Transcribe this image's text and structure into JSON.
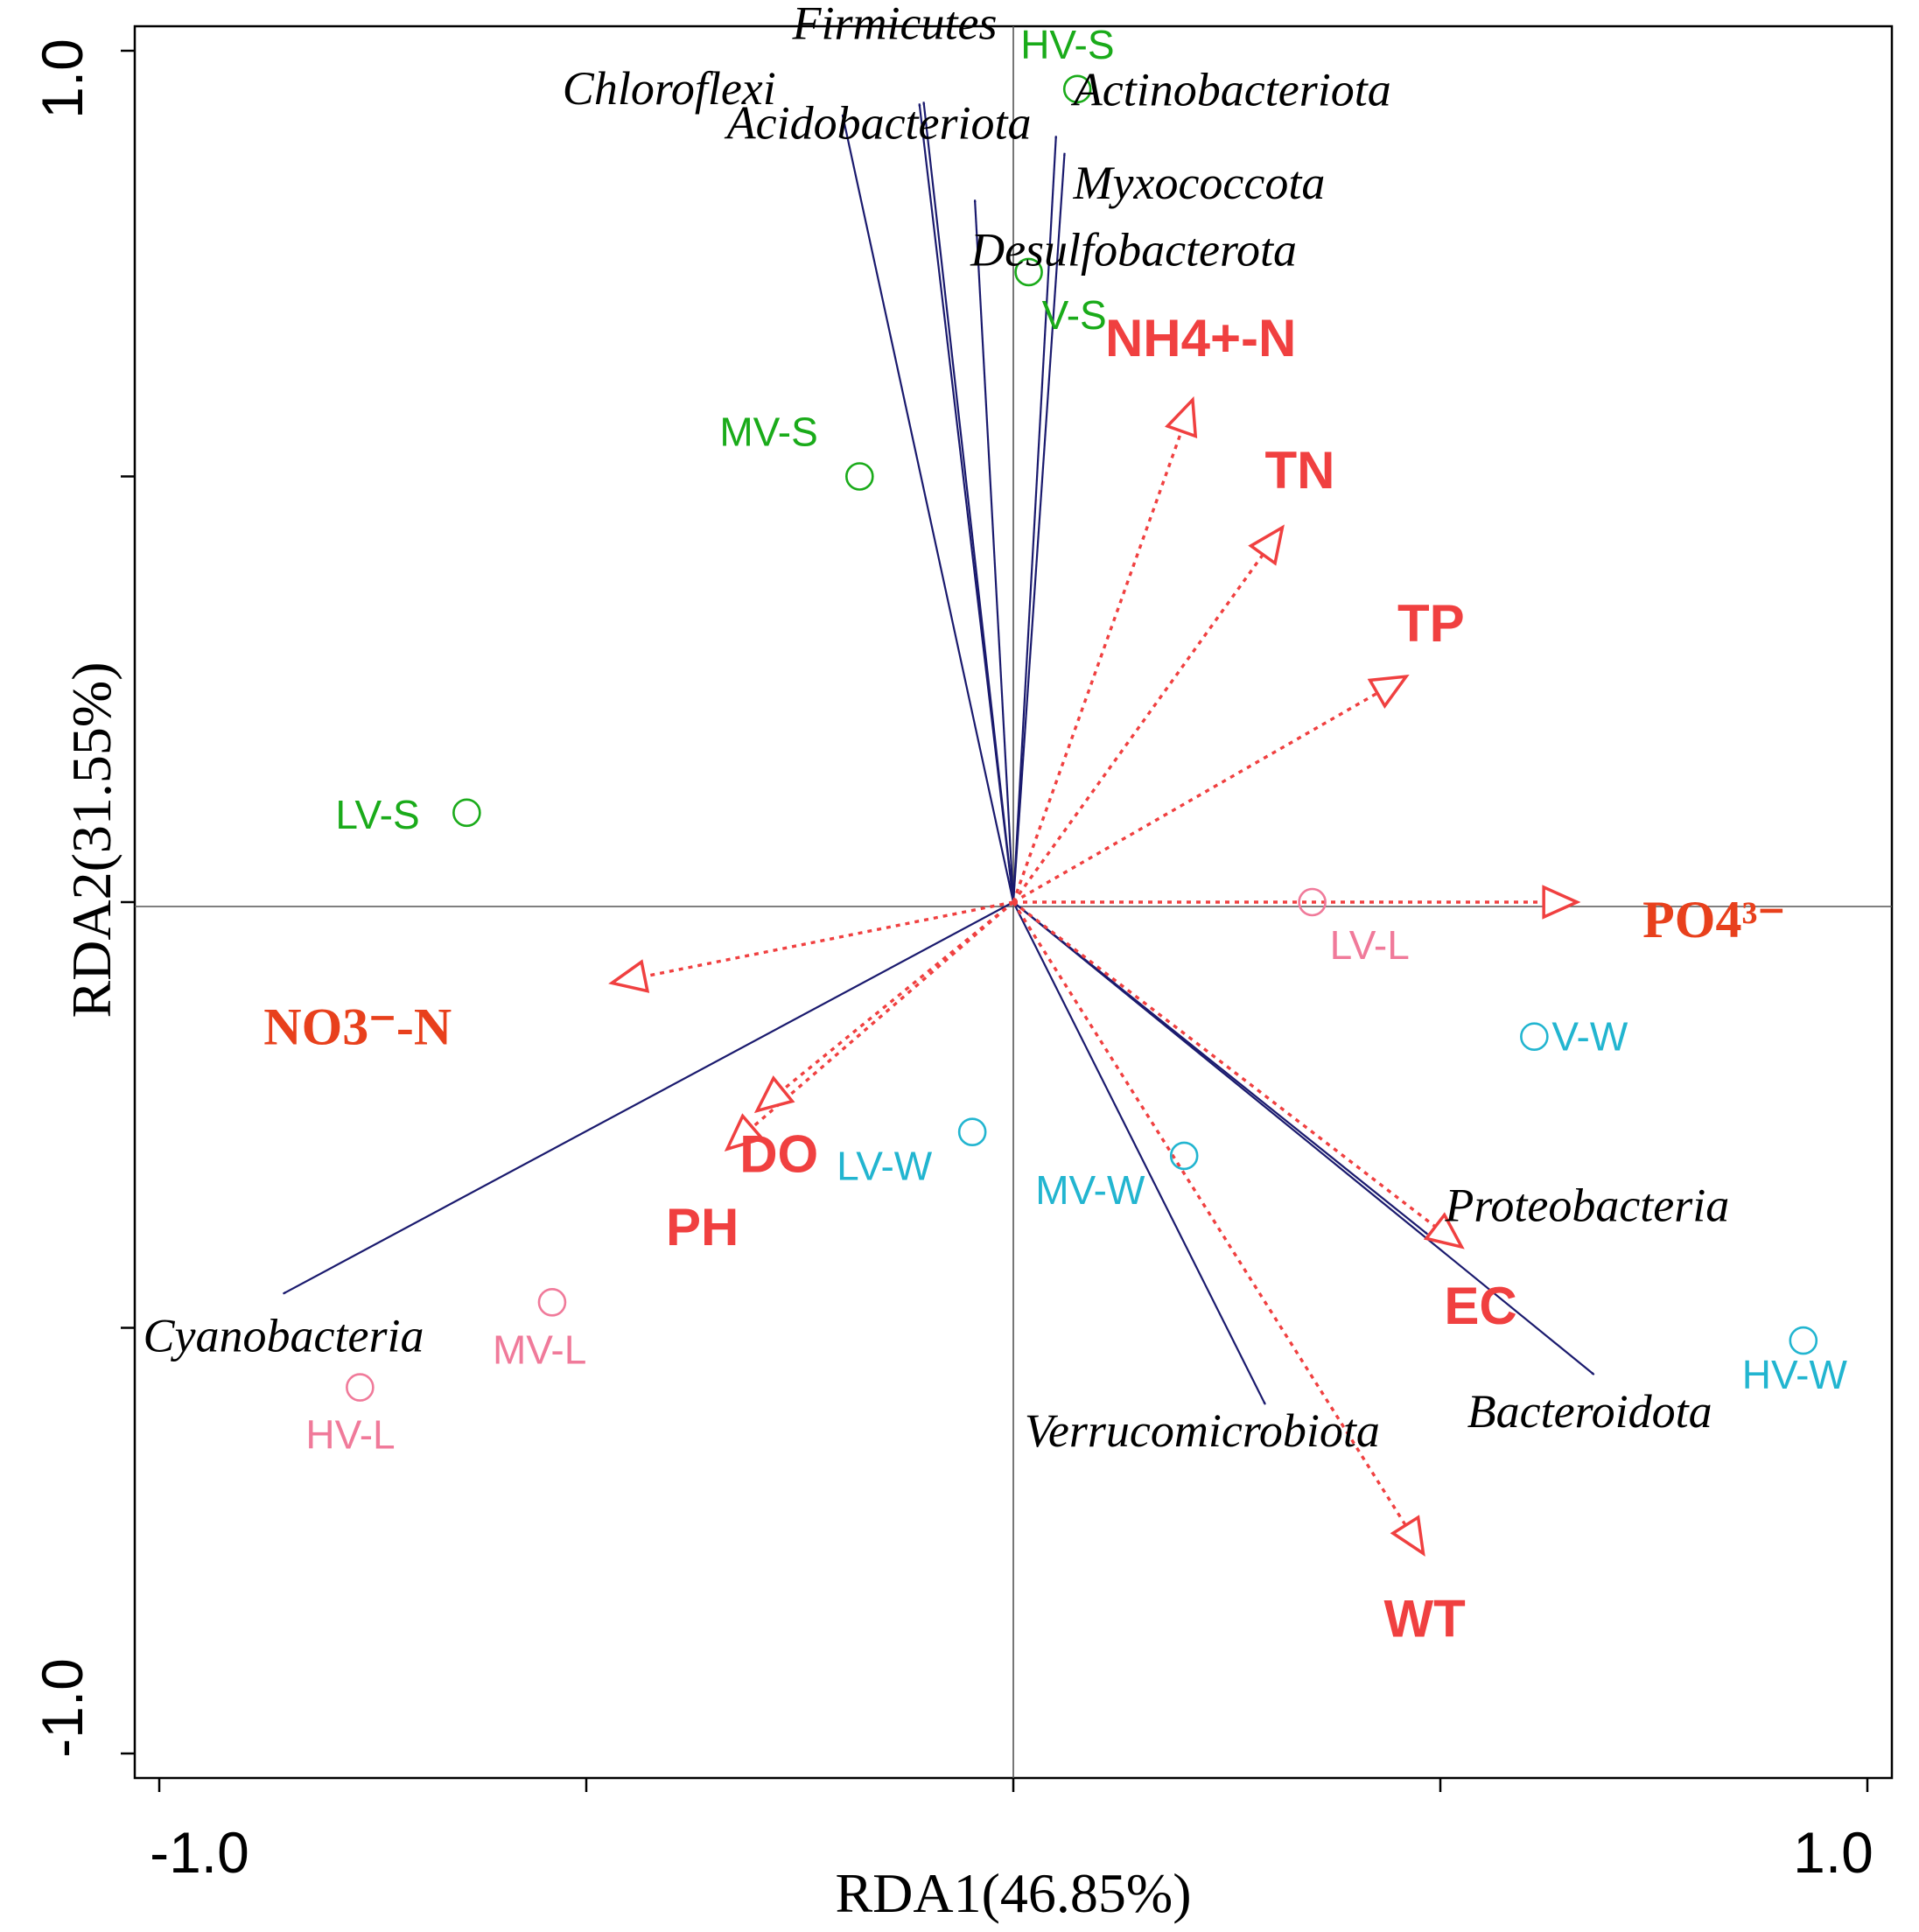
{
  "chart_data": {
    "type": "scatter",
    "subtype": "rda-biplot",
    "title": "",
    "xlabel": "RDA1(46.85%)",
    "ylabel": "RDA2(31.55%)",
    "xlim": [
      -1.0,
      1.0
    ],
    "ylim": [
      -1.0,
      1.0
    ],
    "x_tick_labels": [
      "-1.0",
      "1.0"
    ],
    "y_tick_labels": [
      "-1.0",
      "1.0"
    ],
    "colors": {
      "species": "#1a1a6e",
      "environment": "#f04040",
      "summer": "#1aab1a",
      "winter": "#22b5d0",
      "lake": "#f07a9a"
    },
    "species": [
      {
        "name": "Firmicutes",
        "x": -0.105,
        "y": 0.94
      },
      {
        "name": "Chloroflexi",
        "x": -0.2,
        "y": 0.925
      },
      {
        "name": "Acidobacteriota",
        "x": -0.11,
        "y": 0.938
      },
      {
        "name": "Actinobacteriota",
        "x": 0.05,
        "y": 0.9
      },
      {
        "name": "Myxococcota",
        "x": 0.06,
        "y": 0.88
      },
      {
        "name": "Desulfobacterota",
        "x": -0.045,
        "y": 0.825
      },
      {
        "name": "Cyanobacteria",
        "x": -0.855,
        "y": -0.46
      },
      {
        "name": "Proteobacteria",
        "x": 0.485,
        "y": -0.39
      },
      {
        "name": "Bacteroidota",
        "x": 0.68,
        "y": -0.555
      },
      {
        "name": "Verrucomicrobiota",
        "x": 0.295,
        "y": -0.59
      }
    ],
    "environment": [
      {
        "name": "NH4+-N",
        "x": 0.21,
        "y": 0.59
      },
      {
        "name": "TN",
        "x": 0.315,
        "y": 0.44
      },
      {
        "name": "TP",
        "x": 0.46,
        "y": 0.265
      },
      {
        "name": "PO4³⁻",
        "x": 0.66,
        "y": 0.0
      },
      {
        "name": "NO3⁻-N",
        "x": -0.47,
        "y": -0.095
      },
      {
        "name": "PH",
        "x": -0.335,
        "y": -0.29
      },
      {
        "name": "DO",
        "x": -0.3,
        "y": -0.245
      },
      {
        "name": "EC",
        "x": 0.525,
        "y": -0.405
      },
      {
        "name": "WT",
        "x": 0.48,
        "y": -0.765
      }
    ],
    "sites": [
      {
        "name": "HV-S",
        "season": "summer",
        "x": 0.075,
        "y": 0.955
      },
      {
        "name": "V-S",
        "season": "summer",
        "x": 0.018,
        "y": 0.74
      },
      {
        "name": "MV-S",
        "season": "summer",
        "x": -0.18,
        "y": 0.5
      },
      {
        "name": "LV-S",
        "season": "summer",
        "x": -0.64,
        "y": 0.105
      },
      {
        "name": "LV-L",
        "season": "lake",
        "x": 0.35,
        "y": 0.0
      },
      {
        "name": "MV-L",
        "season": "lake",
        "x": -0.54,
        "y": -0.47
      },
      {
        "name": "HV-L",
        "season": "lake",
        "x": -0.765,
        "y": -0.57
      },
      {
        "name": "V-W",
        "season": "winter",
        "x": 0.61,
        "y": -0.158
      },
      {
        "name": "LV-W",
        "season": "winter",
        "x": -0.048,
        "y": -0.27
      },
      {
        "name": "MV-W",
        "season": "winter",
        "x": 0.2,
        "y": -0.298
      },
      {
        "name": "HV-W",
        "season": "winter",
        "x": 0.925,
        "y": -0.515
      }
    ]
  }
}
